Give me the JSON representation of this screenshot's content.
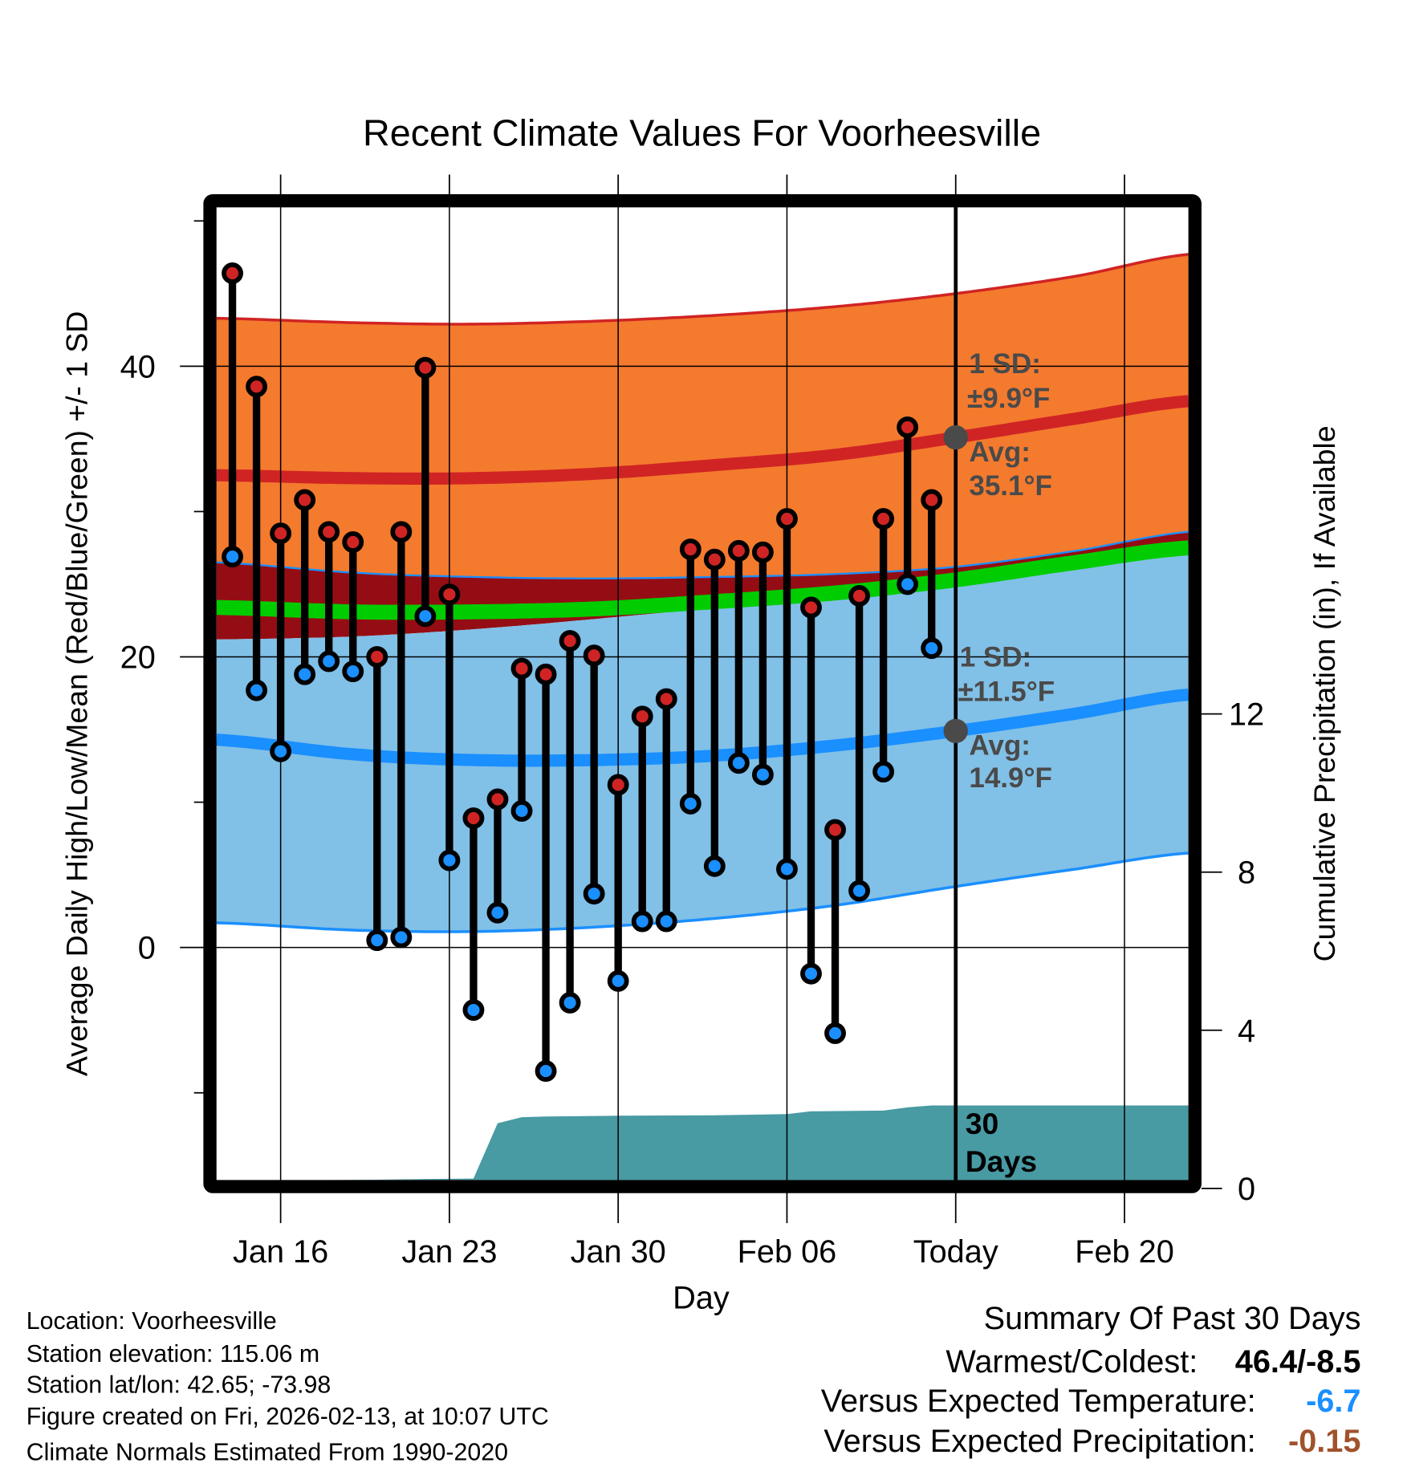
{
  "chart_data": {
    "type": "line",
    "title": "Recent Climate Values For Voorheesville",
    "xlabel": "Day",
    "ylabel": "Average Daily High/Low/Mean (Red/Blue/Green) +/- 1 SD",
    "y2label": "Cumulative Precipitation (in), If Available",
    "ylim": [
      -16,
      51
    ],
    "y_ticks": [
      0,
      20,
      40
    ],
    "y_minor_ticks": [
      -10,
      10,
      30,
      50
    ],
    "y2lim": [
      0,
      24.8
    ],
    "y2_ticks": [
      0,
      4,
      8,
      12
    ],
    "x_ticks": [
      {
        "day": 2,
        "label": "Jan 16"
      },
      {
        "day": 9,
        "label": "Jan 23"
      },
      {
        "day": 16,
        "label": "Jan 30"
      },
      {
        "day": 23,
        "label": "Feb 06"
      },
      {
        "day": 30,
        "label": "Today"
      },
      {
        "day": 37,
        "label": "Feb 20"
      }
    ],
    "x_range_days": [
      -0.66,
      39.65
    ],
    "today_day": 30,
    "daily": {
      "dates": [
        "Jan 14",
        "Jan 15",
        "Jan 16",
        "Jan 17",
        "Jan 18",
        "Jan 19",
        "Jan 20",
        "Jan 21",
        "Jan 22",
        "Jan 23",
        "Jan 24",
        "Jan 25",
        "Jan 26",
        "Jan 27",
        "Jan 28",
        "Jan 29",
        "Jan 30",
        "Jan 31",
        "Feb 01",
        "Feb 02",
        "Feb 03",
        "Feb 04",
        "Feb 05",
        "Feb 06",
        "Feb 07",
        "Feb 08",
        "Feb 09",
        "Feb 10",
        "Feb 11",
        "Feb 12"
      ],
      "high": [
        46.4,
        38.6,
        28.5,
        30.8,
        28.6,
        27.9,
        20.0,
        28.6,
        39.9,
        24.3,
        8.9,
        10.2,
        19.2,
        18.8,
        21.1,
        20.1,
        11.2,
        15.9,
        17.1,
        27.4,
        26.7,
        27.3,
        27.2,
        29.5,
        23.4,
        8.1,
        24.2,
        29.5,
        35.8,
        30.8
      ],
      "low": [
        26.9,
        17.7,
        13.5,
        18.8,
        19.7,
        19.0,
        0.5,
        0.7,
        22.8,
        6.0,
        -4.3,
        2.4,
        9.4,
        -8.5,
        -3.8,
        3.7,
        -2.3,
        1.8,
        1.8,
        9.9,
        5.6,
        12.7,
        11.9,
        5.4,
        -1.8,
        -5.9,
        3.9,
        12.1,
        25.0,
        20.6
      ]
    },
    "normals": {
      "days": [
        -0.66,
        5,
        10,
        15,
        20,
        25,
        30,
        35,
        39.65
      ],
      "high_plus_sd": [
        43.3,
        43.0,
        42.9,
        43.1,
        43.5,
        44.1,
        45.0,
        46.2,
        47.7
      ],
      "high_avg": [
        32.5,
        32.3,
        32.3,
        32.6,
        33.2,
        33.9,
        35.1,
        36.4,
        37.6
      ],
      "high_minus_sd": [
        26.5,
        25.8,
        25.5,
        25.4,
        25.5,
        25.7,
        26.2,
        27.3,
        28.6
      ],
      "mean": [
        23.4,
        23.1,
        23.1,
        23.3,
        23.8,
        24.4,
        25.3,
        26.5,
        27.5
      ],
      "low_plus_sd": [
        21.2,
        21.4,
        21.9,
        22.6,
        23.4,
        24.3,
        25.3,
        26.2,
        27.0
      ],
      "low_avg": [
        14.3,
        13.3,
        12.9,
        12.9,
        13.2,
        13.9,
        14.9,
        16.1,
        17.4
      ],
      "low_minus_sd": [
        1.7,
        1.2,
        1.1,
        1.4,
        2.0,
        2.9,
        4.2,
        5.4,
        6.5
      ]
    },
    "precip_cumulative": {
      "days": [
        2,
        3,
        4,
        6,
        8,
        10,
        11,
        12,
        13,
        16,
        20,
        23,
        24,
        27,
        28,
        29,
        30,
        39.65
      ],
      "values": [
        0,
        0.1,
        0.2,
        0.22,
        0.24,
        0.25,
        1.65,
        1.8,
        1.82,
        1.84,
        1.85,
        1.88,
        1.95,
        1.97,
        2.05,
        2.1,
        2.1,
        2.1
      ]
    },
    "annotations": {
      "high_sd_line1": "1 SD:",
      "high_sd_line2": "±9.9°F",
      "high_avg_line1": "Avg:",
      "high_avg_line2": "35.1°F",
      "low_sd_line1": "1 SD:",
      "low_sd_line2": "±11.5°F",
      "low_avg_line1": "Avg:",
      "low_avg_line2": "14.9°F",
      "days_line1": "30",
      "days_line2": "Days"
    },
    "colors": {
      "high_band": "#f47a2e",
      "high_line": "#d02424",
      "overlap": "#950d14",
      "mean_line": "#00cc00",
      "low_band": "#81c0e7",
      "low_line": "#1a8fff",
      "precip": "#489aa3",
      "annotation": "#4a4a4a"
    }
  },
  "footer": {
    "location": "Location: Voorheesville",
    "elevation": "Station elevation: 115.06 m",
    "latlon": "Station lat/lon: 42.65; -73.98",
    "created": "Figure created on Fri, 2026-02-13, at 10:07 UTC",
    "normals": "Climate Normals Estimated From 1990-2020"
  },
  "summary": {
    "title": "Summary Of Past 30 Days",
    "warm_cold_label": "Warmest/Coldest:",
    "warm_cold_value": "46.4/-8.5",
    "temp_label": "Versus Expected Temperature:",
    "temp_value": "-6.7",
    "temp_color": "#1a8fff",
    "precip_label": "Versus Expected Precipitation:",
    "precip_value": "-0.15",
    "precip_color": "#a0522d"
  }
}
